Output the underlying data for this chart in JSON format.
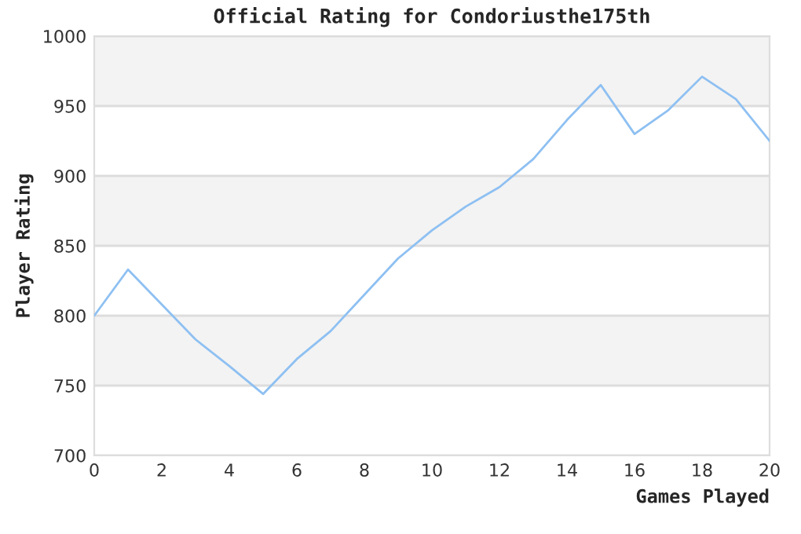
{
  "chart_data": {
    "type": "line",
    "title": "Official Rating for Condoriusthe175th",
    "xlabel": "Games Played",
    "ylabel": "Player Rating",
    "x": [
      0,
      1,
      2,
      3,
      4,
      5,
      6,
      7,
      8,
      9,
      10,
      11,
      12,
      13,
      14,
      15,
      16,
      17,
      18,
      19,
      20
    ],
    "series": [
      {
        "color": "#8ec0f2",
        "values": [
          800,
          833,
          808,
          783,
          764,
          744,
          769,
          789,
          815,
          841,
          861,
          878,
          892,
          912,
          940,
          965,
          930,
          947,
          971,
          955,
          925
        ]
      }
    ],
    "xlim": [
      0,
      20
    ],
    "xticks": [
      0,
      2,
      4,
      6,
      8,
      10,
      12,
      14,
      16,
      18,
      20
    ],
    "ylim": [
      700,
      1000
    ],
    "yticks": [
      700,
      750,
      800,
      850,
      900,
      950,
      1000
    ],
    "bands": [
      {
        "axis": "y",
        "from": 750,
        "to": 800,
        "color": "#f3f3f3"
      },
      {
        "axis": "y",
        "from": 850,
        "to": 900,
        "color": "#f3f3f3"
      },
      {
        "axis": "y",
        "from": 950,
        "to": 1000,
        "color": "#f3f3f3"
      }
    ],
    "grid": "y",
    "marker": "none",
    "line_style": "solid"
  }
}
